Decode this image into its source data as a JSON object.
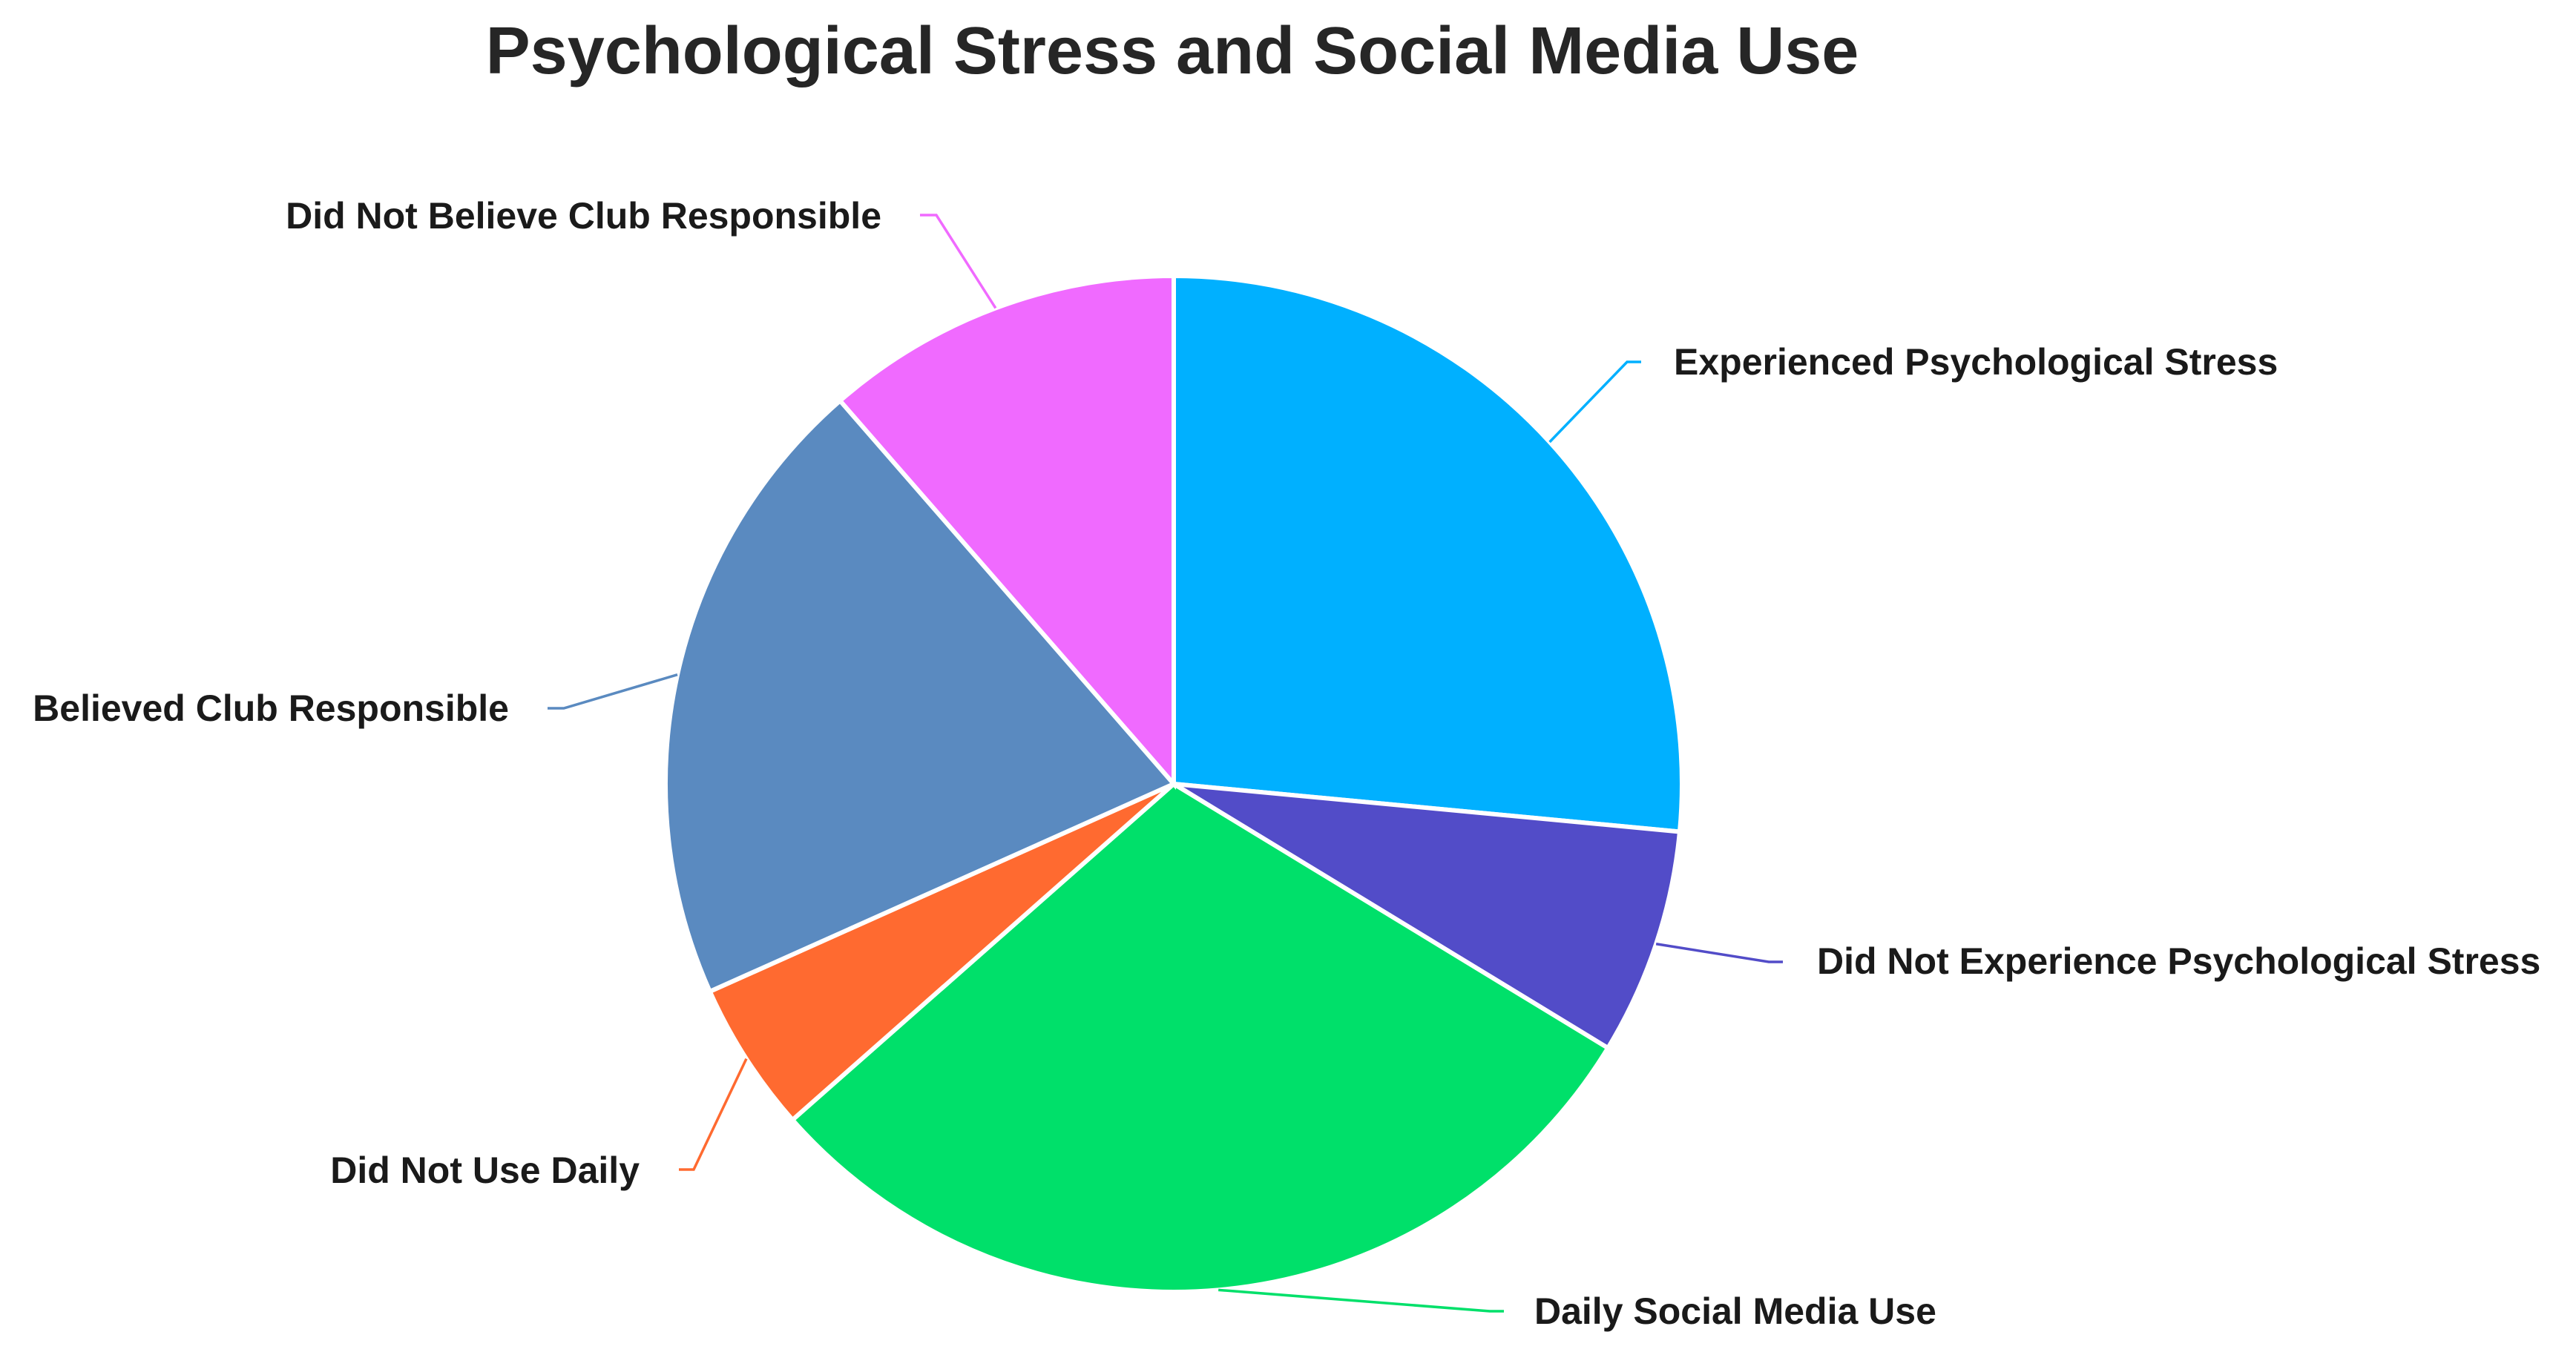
{
  "chart_data": {
    "type": "pie",
    "title": "Psychological Stress and Social Media Use",
    "start_angle_deg": 0,
    "direction": "clockwise",
    "slices": [
      {
        "label": "Experienced Psychological Stress",
        "value": 26.5,
        "color": "#00B0FF"
      },
      {
        "label": "Did Not Experience Psychological Stress",
        "value": 7.2,
        "color": "#524CC8"
      },
      {
        "label": "Daily Social Media Use",
        "value": 29.8,
        "color": "#00E06A"
      },
      {
        "label": "Did Not Use Daily",
        "value": 4.8,
        "color": "#FF6A30"
      },
      {
        "label": "Believed Club Responsible",
        "value": 20.3,
        "color": "#5A8AC0"
      },
      {
        "label": "Did Not Believe Club Responsible",
        "value": 11.4,
        "color": "#F06AFF"
      }
    ],
    "legend": "none",
    "labels": "outside with leader lines"
  }
}
